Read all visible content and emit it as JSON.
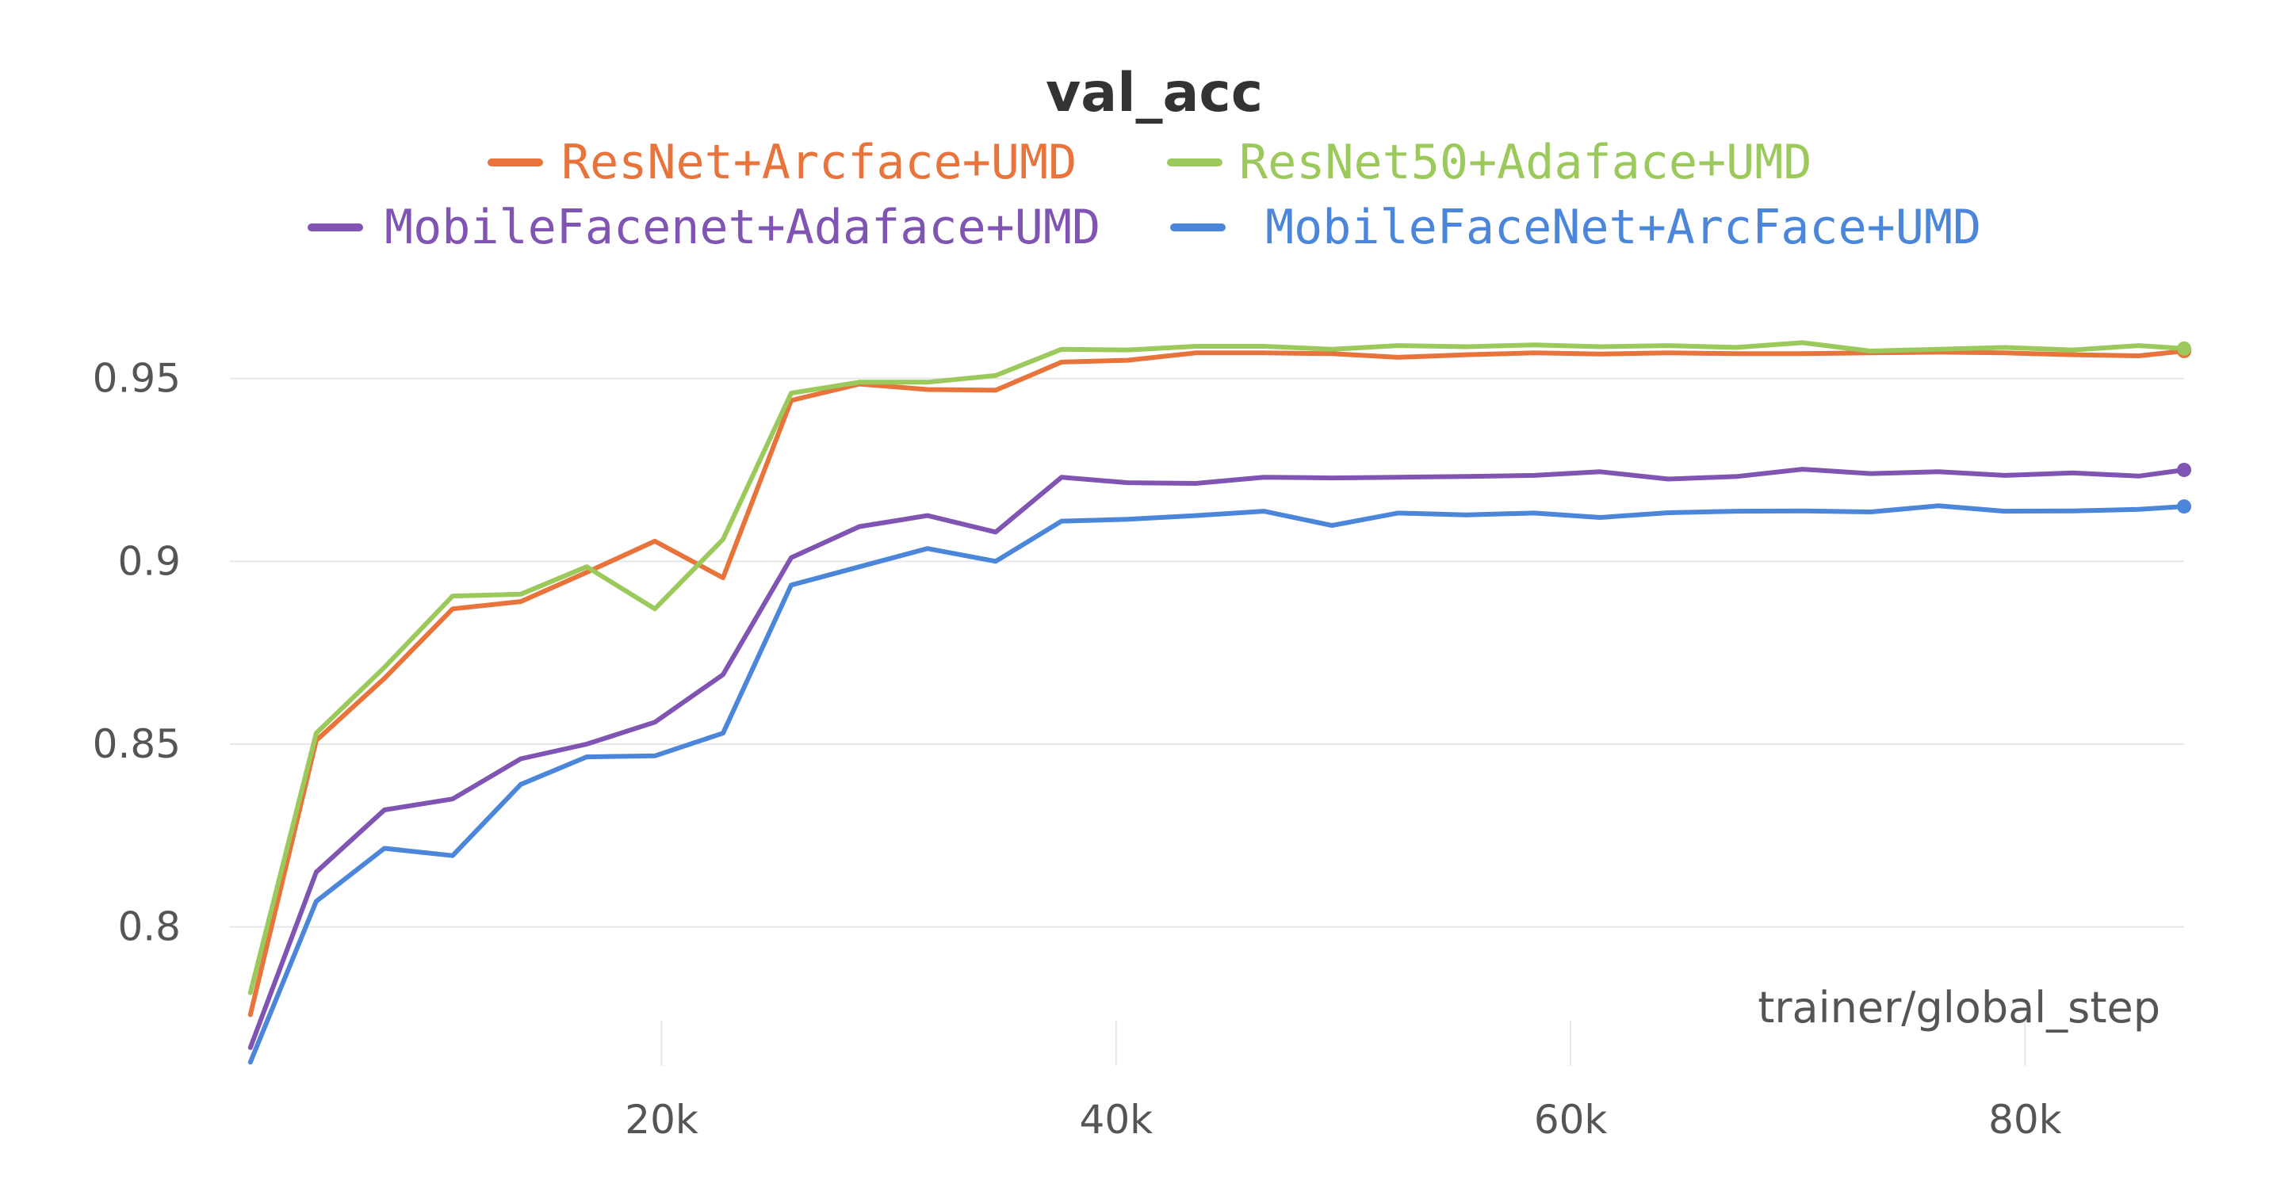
{
  "chart_data": {
    "type": "line",
    "title": "val_acc",
    "xlabel": "trainer/global_step",
    "ylabel": "",
    "xlim": [
      1000,
      87000
    ],
    "ylim": [
      0.762,
      0.982
    ],
    "grid": true,
    "legend_position": "top",
    "x_ticks": [
      {
        "value": 20000,
        "label": "20k"
      },
      {
        "value": 40000,
        "label": "40k"
      },
      {
        "value": 60000,
        "label": "60k"
      },
      {
        "value": 80000,
        "label": "80k"
      }
    ],
    "y_ticks": [
      {
        "value": 0.8,
        "label": "0.8"
      },
      {
        "value": 0.85,
        "label": "0.85"
      },
      {
        "value": 0.9,
        "label": "0.9"
      },
      {
        "value": 0.95,
        "label": "0.95"
      }
    ],
    "x": [
      1900,
      4800,
      7800,
      10800,
      13800,
      16700,
      19700,
      22700,
      25700,
      28700,
      31700,
      34700,
      37600,
      40500,
      43500,
      46500,
      49500,
      52400,
      55400,
      58400,
      61300,
      64300,
      67300,
      70200,
      73200,
      76200,
      79100,
      82100,
      85000,
      87000
    ],
    "series": [
      {
        "name": "ResNet+Arcface+UMD",
        "color": "#e8743b",
        "values": [
          0.776,
          0.851,
          0.868,
          0.887,
          0.889,
          0.897,
          0.9055,
          0.8955,
          0.944,
          0.9485,
          0.947,
          0.9468,
          0.9545,
          0.955,
          0.957,
          0.957,
          0.9568,
          0.9558,
          0.9565,
          0.957,
          0.9567,
          0.957,
          0.9568,
          0.9568,
          0.957,
          0.9572,
          0.957,
          0.9565,
          0.9562,
          0.9575
        ]
      },
      {
        "name": "ResNet50+Adaface+UMD",
        "color": "#9cc95b",
        "values": [
          0.782,
          0.853,
          0.871,
          0.8905,
          0.891,
          0.8985,
          0.887,
          0.906,
          0.946,
          0.949,
          0.949,
          0.9508,
          0.958,
          0.9578,
          0.9588,
          0.9588,
          0.958,
          0.959,
          0.9587,
          0.9592,
          0.9587,
          0.959,
          0.9585,
          0.9598,
          0.9575,
          0.958,
          0.9585,
          0.9578,
          0.959,
          0.9582
        ]
      },
      {
        "name": "MobileFacenet+Adaface+UMD",
        "color": "#7f54b3",
        "values": [
          0.767,
          0.815,
          0.832,
          0.835,
          0.846,
          0.85,
          0.856,
          0.869,
          0.901,
          0.9095,
          0.9125,
          0.908,
          0.923,
          0.9215,
          0.9213,
          0.923,
          0.9228,
          0.923,
          0.9232,
          0.9235,
          0.9245,
          0.9225,
          0.9232,
          0.9252,
          0.924,
          0.9245,
          0.9235,
          0.9242,
          0.9233,
          0.925
        ]
      },
      {
        "name": "MobileFaceNet+ArcFace+UMD",
        "color": "#4b86db",
        "values": [
          0.763,
          0.807,
          0.8215,
          0.8195,
          0.839,
          0.8465,
          0.8468,
          0.853,
          0.8935,
          0.8985,
          0.9035,
          0.9,
          0.911,
          0.9115,
          0.9125,
          0.9137,
          0.9098,
          0.9132,
          0.9127,
          0.9132,
          0.912,
          0.9133,
          0.9137,
          0.9138,
          0.9135,
          0.9152,
          0.9137,
          0.9138,
          0.9142,
          0.915
        ]
      }
    ]
  }
}
